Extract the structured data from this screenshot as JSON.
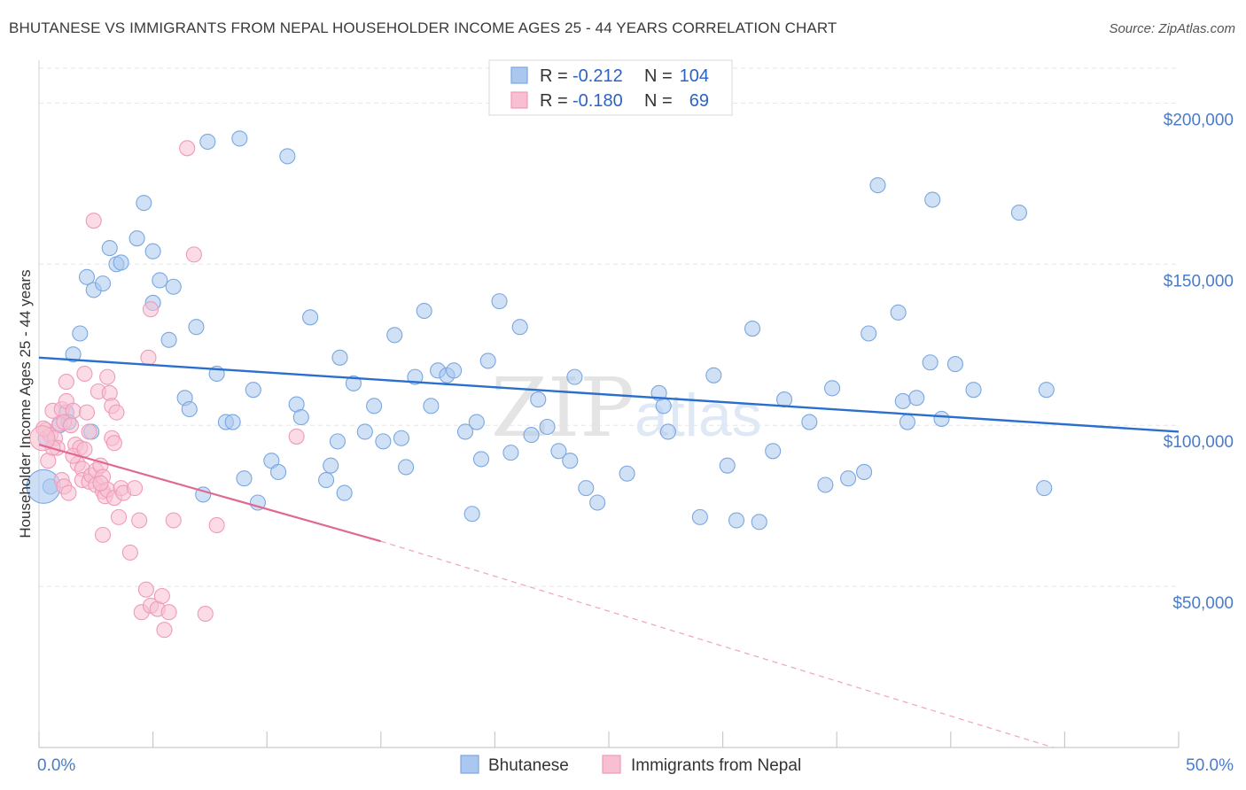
{
  "title": "BHUTANESE VS IMMIGRANTS FROM NEPAL HOUSEHOLDER INCOME AGES 25 - 44 YEARS CORRELATION CHART",
  "source": "Source: ZipAtlas.com",
  "watermark": {
    "zip": "ZIP",
    "atlas": "atlas"
  },
  "chart_data": {
    "type": "scatter",
    "xlabel": "",
    "ylabel": "Householder Income Ages 25 - 44 years",
    "xlim": [
      0,
      50
    ],
    "ylim": [
      0,
      210000
    ],
    "x_tick_labels": {
      "min": "0.0%",
      "max": "50.0%"
    },
    "y_ticks": [
      {
        "value": 50000,
        "label": "$50,000"
      },
      {
        "value": 100000,
        "label": "$100,000"
      },
      {
        "value": 150000,
        "label": "$150,000"
      },
      {
        "value": 200000,
        "label": "$200,000"
      }
    ],
    "legend": [
      {
        "r_label": "R =",
        "r": "-0.212",
        "n_label": "N =",
        "n": "104"
      },
      {
        "r_label": "R =",
        "r": "-0.180",
        "n_label": "N =",
        "n": "69"
      }
    ],
    "series": [
      {
        "name": "Bhutanese",
        "color": "#7aa7e0",
        "fill": "#aac8ef",
        "line_color": "#2b6fce",
        "trend": {
          "x1": 0,
          "y1": 121000,
          "x2": 50,
          "y2": 98000
        },
        "points": [
          [
            0.5,
            81000
          ],
          [
            0.9,
            100000
          ],
          [
            1.2,
            104000
          ],
          [
            1.5,
            122000
          ],
          [
            1.8,
            128500
          ],
          [
            2.1,
            146000
          ],
          [
            2.4,
            142000
          ],
          [
            2.8,
            144000
          ],
          [
            3.1,
            155000
          ],
          [
            3.4,
            150000
          ],
          [
            3.6,
            150500
          ],
          [
            4.3,
            158000
          ],
          [
            4.6,
            169000
          ],
          [
            5.0,
            154000
          ],
          [
            5.0,
            138000
          ],
          [
            5.3,
            145000
          ],
          [
            5.7,
            126500
          ],
          [
            5.9,
            143000
          ],
          [
            6.4,
            108500
          ],
          [
            6.6,
            105000
          ],
          [
            6.9,
            130500
          ],
          [
            7.2,
            78500
          ],
          [
            7.4,
            188000
          ],
          [
            7.8,
            116000
          ],
          [
            8.2,
            101000
          ],
          [
            8.5,
            101000
          ],
          [
            8.8,
            189000
          ],
          [
            9.0,
            83500
          ],
          [
            9.4,
            111000
          ],
          [
            9.6,
            76000
          ],
          [
            10.2,
            89000
          ],
          [
            10.5,
            85500
          ],
          [
            10.9,
            183500
          ],
          [
            11.3,
            106500
          ],
          [
            11.5,
            102500
          ],
          [
            11.9,
            133500
          ],
          [
            12.6,
            83000
          ],
          [
            12.8,
            87500
          ],
          [
            13.1,
            95000
          ],
          [
            13.4,
            79000
          ],
          [
            13.2,
            121000
          ],
          [
            13.8,
            113000
          ],
          [
            14.3,
            98000
          ],
          [
            14.7,
            106000
          ],
          [
            15.1,
            95000
          ],
          [
            15.6,
            128000
          ],
          [
            16.1,
            87000
          ],
          [
            15.9,
            96000
          ],
          [
            16.5,
            115000
          ],
          [
            16.9,
            135500
          ],
          [
            17.2,
            106000
          ],
          [
            17.5,
            117000
          ],
          [
            17.9,
            115500
          ],
          [
            18.2,
            117000
          ],
          [
            18.7,
            98000
          ],
          [
            19.0,
            72500
          ],
          [
            19.2,
            101000
          ],
          [
            19.4,
            89500
          ],
          [
            19.7,
            120000
          ],
          [
            20.2,
            138500
          ],
          [
            20.7,
            91500
          ],
          [
            21.1,
            130500
          ],
          [
            21.6,
            97000
          ],
          [
            21.9,
            108000
          ],
          [
            22.3,
            99500
          ],
          [
            22.8,
            92000
          ],
          [
            23.3,
            89000
          ],
          [
            23.5,
            115000
          ],
          [
            24.0,
            80500
          ],
          [
            24.5,
            76000
          ],
          [
            25.8,
            85000
          ],
          [
            27.2,
            110000
          ],
          [
            27.4,
            106000
          ],
          [
            27.6,
            98000
          ],
          [
            29.0,
            71500
          ],
          [
            29.6,
            115500
          ],
          [
            30.2,
            87500
          ],
          [
            30.6,
            70500
          ],
          [
            31.3,
            130000
          ],
          [
            31.6,
            70000
          ],
          [
            32.2,
            92000
          ],
          [
            32.7,
            108000
          ],
          [
            33.8,
            101000
          ],
          [
            34.5,
            81500
          ],
          [
            34.8,
            111500
          ],
          [
            35.5,
            83500
          ],
          [
            36.2,
            85500
          ],
          [
            36.4,
            128500
          ],
          [
            36.8,
            174500
          ],
          [
            37.7,
            135000
          ],
          [
            37.9,
            107500
          ],
          [
            38.1,
            101000
          ],
          [
            38.5,
            108500
          ],
          [
            39.1,
            119500
          ],
          [
            39.2,
            170000
          ],
          [
            39.6,
            102000
          ],
          [
            40.2,
            119000
          ],
          [
            41.0,
            111000
          ],
          [
            43.0,
            166000
          ],
          [
            44.1,
            80500
          ],
          [
            44.2,
            111000
          ],
          [
            0.3,
            96000
          ],
          [
            1.3,
            101000
          ],
          [
            2.3,
            98000
          ]
        ]
      },
      {
        "name": "Immigrants from Nepal",
        "color": "#f09ab7",
        "fill": "#f7bfd1",
        "line_color": "#e06891",
        "trend": {
          "x1": 0,
          "y1": 94000,
          "x2": 15,
          "y2": 64000
        },
        "trend_dashed": {
          "x1": 15,
          "y1": 64000,
          "x2": 44.5,
          "y2": 0
        },
        "points": [
          [
            0.3,
            98500
          ],
          [
            0.4,
            89000
          ],
          [
            0.5,
            97000
          ],
          [
            0.6,
            104500
          ],
          [
            0.7,
            96000
          ],
          [
            0.8,
            93000
          ],
          [
            0.9,
            100500
          ],
          [
            1.0,
            105000
          ],
          [
            1.1,
            101000
          ],
          [
            1.0,
            83000
          ],
          [
            1.1,
            81000
          ],
          [
            1.2,
            113500
          ],
          [
            1.2,
            107500
          ],
          [
            1.3,
            79000
          ],
          [
            1.4,
            100000
          ],
          [
            1.5,
            104500
          ],
          [
            1.6,
            94000
          ],
          [
            1.7,
            88000
          ],
          [
            1.8,
            93000
          ],
          [
            1.9,
            86500
          ],
          [
            1.9,
            83000
          ],
          [
            2.0,
            116000
          ],
          [
            2.1,
            104000
          ],
          [
            2.2,
            98000
          ],
          [
            2.2,
            82500
          ],
          [
            2.3,
            84500
          ],
          [
            2.4,
            163500
          ],
          [
            2.5,
            86000
          ],
          [
            2.5,
            81500
          ],
          [
            2.6,
            110500
          ],
          [
            2.7,
            87500
          ],
          [
            2.8,
            79500
          ],
          [
            2.8,
            84000
          ],
          [
            2.9,
            78000
          ],
          [
            3.0,
            80000
          ],
          [
            3.0,
            115000
          ],
          [
            3.1,
            110000
          ],
          [
            3.2,
            106000
          ],
          [
            3.2,
            96000
          ],
          [
            3.3,
            77500
          ],
          [
            3.3,
            94500
          ],
          [
            3.4,
            104000
          ],
          [
            3.5,
            71500
          ],
          [
            3.6,
            80500
          ],
          [
            3.7,
            79000
          ],
          [
            4.0,
            60500
          ],
          [
            4.2,
            80500
          ],
          [
            4.4,
            70500
          ],
          [
            4.5,
            42000
          ],
          [
            4.7,
            49000
          ],
          [
            4.8,
            121000
          ],
          [
            4.9,
            136000
          ],
          [
            4.9,
            44000
          ],
          [
            5.2,
            43000
          ],
          [
            5.4,
            47000
          ],
          [
            5.5,
            36500
          ],
          [
            5.7,
            42000
          ],
          [
            5.9,
            70500
          ],
          [
            6.5,
            186000
          ],
          [
            6.8,
            153000
          ],
          [
            7.3,
            41500
          ],
          [
            7.8,
            69000
          ],
          [
            11.3,
            96500
          ],
          [
            0.2,
            99000
          ],
          [
            0.6,
            93000
          ],
          [
            1.5,
            90500
          ],
          [
            2.0,
            92500
          ],
          [
            2.8,
            66000
          ],
          [
            2.7,
            82000
          ]
        ]
      }
    ]
  }
}
